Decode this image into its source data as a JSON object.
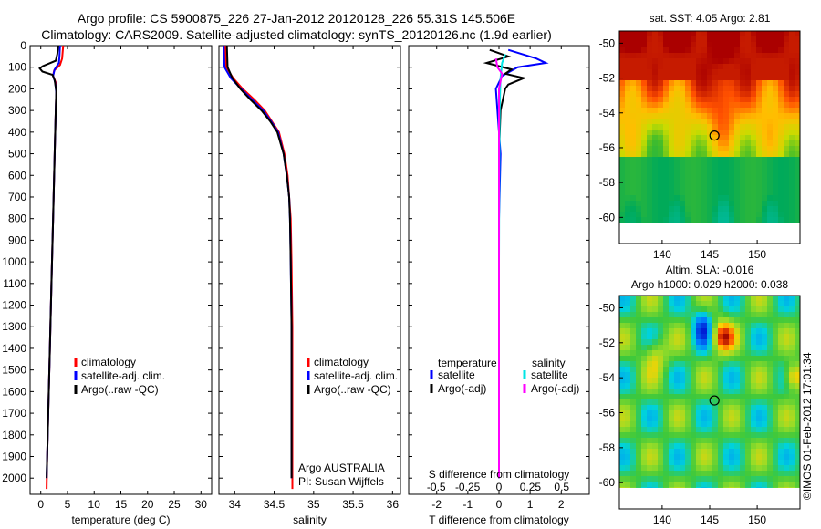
{
  "header": {
    "title_line1": "Argo profile: CS 5900875_226 27-Jan-2012 20120128_226 55.31S 145.506E",
    "title_line2": "Climatology: CARS2009. Satellite-adjusted climatology: synTS_20120126.nc (1.9d earlier)"
  },
  "credit": "©IMOS 01-Feb-2012 17:01:34",
  "colors": {
    "climatology": "#ff0000",
    "satellite": "#0000ff",
    "argo": "#000000",
    "satellite_salinity": "#00e5e5",
    "argo_salinity": "#ff00ff"
  },
  "chart_data": [
    {
      "type": "line",
      "xlabel": "temperature (deg C)",
      "xlim": [
        -2,
        32
      ],
      "xticks": [
        0,
        5,
        10,
        15,
        20,
        25,
        30
      ],
      "ylim": [
        2075,
        0
      ],
      "yticks": [
        0,
        100,
        200,
        300,
        400,
        500,
        600,
        700,
        800,
        900,
        1000,
        1100,
        1200,
        1300,
        1400,
        1500,
        1600,
        1700,
        1800,
        1900,
        2000
      ],
      "legend": [
        "climatology",
        "satellite-adj. clim.",
        "Argo(..raw -QC)"
      ],
      "series": [
        {
          "name": "climatology",
          "color": "#ff0000",
          "points": [
            [
              4.2,
              0
            ],
            [
              4.0,
              60
            ],
            [
              3.6,
              90
            ],
            [
              2.5,
              115
            ],
            [
              2.3,
              140
            ],
            [
              2.8,
              170
            ],
            [
              2.9,
              220
            ],
            [
              2.8,
              300
            ],
            [
              2.6,
              500
            ],
            [
              2.3,
              800
            ],
            [
              2.0,
              1100
            ],
            [
              1.7,
              1400
            ],
            [
              1.4,
              1700
            ],
            [
              1.2,
              1900
            ],
            [
              1.1,
              2050
            ]
          ]
        },
        {
          "name": "satellite-adj. clim.",
          "color": "#0000ff",
          "points": [
            [
              3.6,
              0
            ],
            [
              3.5,
              50
            ],
            [
              3.4,
              80
            ],
            [
              2.6,
              110
            ],
            [
              2.3,
              140
            ],
            [
              2.7,
              170
            ],
            [
              2.9,
              220
            ],
            [
              2.8,
              300
            ],
            [
              2.6,
              500
            ],
            [
              2.3,
              800
            ],
            [
              2.0,
              1100
            ],
            [
              1.7,
              1400
            ],
            [
              1.4,
              1700
            ],
            [
              1.2,
              1900
            ],
            [
              1.1,
              2000
            ]
          ]
        },
        {
          "name": "Argo(..raw -QC)",
          "color": "#000000",
          "points": [
            [
              3.3,
              0
            ],
            [
              3.1,
              40
            ],
            [
              2.8,
              70
            ],
            [
              0.4,
              95
            ],
            [
              -0.2,
              105
            ],
            [
              0.3,
              120
            ],
            [
              2.2,
              135
            ],
            [
              2.6,
              160
            ],
            [
              2.9,
              210
            ],
            [
              2.8,
              300
            ],
            [
              2.6,
              500
            ],
            [
              2.3,
              800
            ],
            [
              2.0,
              1100
            ],
            [
              1.7,
              1400
            ],
            [
              1.4,
              1700
            ],
            [
              1.2,
              1900
            ],
            [
              1.1,
              2000
            ]
          ]
        }
      ]
    },
    {
      "type": "line",
      "xlabel": "salinity",
      "xlim": [
        33.8,
        36.1
      ],
      "xticks": [
        34,
        34.5,
        35,
        35.5,
        36
      ],
      "ylim": [
        2075,
        0
      ],
      "legend": [
        "climatology",
        "satellite-adj. clim.",
        "Argo(..raw -QC)"
      ],
      "annotation": [
        "Argo AUSTRALIA",
        "PI: Susan Wijffels"
      ],
      "series": [
        {
          "name": "climatology",
          "color": "#ff0000",
          "points": [
            [
              33.88,
              0
            ],
            [
              33.89,
              100
            ],
            [
              33.98,
              150
            ],
            [
              34.1,
              200
            ],
            [
              34.25,
              250
            ],
            [
              34.38,
              300
            ],
            [
              34.47,
              350
            ],
            [
              34.56,
              400
            ],
            [
              34.63,
              500
            ],
            [
              34.67,
              600
            ],
            [
              34.69,
              700
            ],
            [
              34.71,
              800
            ],
            [
              34.72,
              1000
            ],
            [
              34.73,
              1300
            ],
            [
              34.73,
              2050
            ]
          ]
        },
        {
          "name": "satellite-adj. clim.",
          "color": "#0000ff",
          "points": [
            [
              33.86,
              0
            ],
            [
              33.87,
              100
            ],
            [
              33.95,
              150
            ],
            [
              34.08,
              200
            ],
            [
              34.22,
              250
            ],
            [
              34.36,
              300
            ],
            [
              34.46,
              350
            ],
            [
              34.55,
              400
            ],
            [
              34.62,
              500
            ],
            [
              34.66,
              600
            ],
            [
              34.69,
              700
            ],
            [
              34.7,
              800
            ],
            [
              34.71,
              1000
            ],
            [
              34.72,
              1300
            ],
            [
              34.72,
              2000
            ]
          ]
        },
        {
          "name": "Argo(..raw -QC)",
          "color": "#000000",
          "points": [
            [
              33.9,
              0
            ],
            [
              33.91,
              100
            ],
            [
              33.97,
              150
            ],
            [
              34.07,
              200
            ],
            [
              34.2,
              250
            ],
            [
              34.34,
              300
            ],
            [
              34.45,
              350
            ],
            [
              34.54,
              400
            ],
            [
              34.62,
              500
            ],
            [
              34.66,
              600
            ],
            [
              34.69,
              700
            ],
            [
              34.7,
              800
            ],
            [
              34.71,
              1000
            ],
            [
              34.72,
              1300
            ],
            [
              34.72,
              2000
            ]
          ]
        }
      ]
    },
    {
      "type": "line",
      "xlabel": "T difference from climatology",
      "top_label": "S difference from climatology",
      "xlim": [
        -2.9,
        2.9
      ],
      "xticks": [
        -2,
        -1,
        0,
        1,
        2
      ],
      "sticks": [
        -0.5,
        -0.25,
        0,
        0.25,
        0.5
      ],
      "sticks_labels": [
        "-0.5",
        "-0.25",
        "0",
        "0.25",
        "0.5"
      ],
      "ylim": [
        2075,
        0
      ],
      "legend": {
        "temperature": [
          "satellite",
          "Argo(-adj)"
        ],
        "salinity": [
          "satellite",
          "Argo(-adj)"
        ]
      },
      "series": [
        {
          "name": "satellite",
          "group": "temperature",
          "color": "#0000ff",
          "points": [
            [
              0.3,
              20
            ],
            [
              1.2,
              60
            ],
            [
              1.5,
              80
            ],
            [
              0.6,
              100
            ],
            [
              0.1,
              140
            ],
            [
              -0.1,
              200
            ],
            [
              -0.05,
              300
            ],
            [
              0.05,
              500
            ],
            [
              0,
              800
            ],
            [
              0,
              1200
            ],
            [
              0,
              2000
            ]
          ]
        },
        {
          "name": "Argo(-adj)",
          "group": "temperature",
          "color": "#000000",
          "points": [
            [
              -0.3,
              20
            ],
            [
              0.3,
              50
            ],
            [
              -0.4,
              80
            ],
            [
              0.4,
              110
            ],
            [
              0.2,
              130
            ],
            [
              0.8,
              150
            ],
            [
              0.3,
              180
            ],
            [
              0.2,
              200
            ],
            [
              0.05,
              300
            ],
            [
              0.0,
              500
            ],
            [
              0,
              1000
            ],
            [
              0,
              2000
            ]
          ]
        },
        {
          "name": "satellite",
          "group": "salinity",
          "color": "#00e5e5",
          "points": [
            [
              0.2,
              40
            ],
            [
              0.1,
              80
            ],
            [
              0.05,
              150
            ],
            [
              0.02,
              300
            ],
            [
              0.01,
              600
            ],
            [
              0,
              1000
            ],
            [
              0,
              2000
            ]
          ]
        },
        {
          "name": "Argo(-adj)",
          "group": "salinity",
          "color": "#ff00ff",
          "points": [
            [
              -0.1,
              60
            ],
            [
              -0.05,
              100
            ],
            [
              0.1,
              130
            ],
            [
              0,
              200
            ],
            [
              0,
              500
            ],
            [
              0,
              2000
            ]
          ]
        }
      ]
    },
    {
      "type": "heatmap",
      "title": "sat. SST: 4.05 Argo: 2.81",
      "xlim": [
        135.5,
        154.5
      ],
      "ylim": [
        -61.5,
        -49.3
      ],
      "xticks": [
        140,
        145,
        150
      ],
      "yticks": [
        -50,
        -52,
        -54,
        -56,
        -58,
        -60
      ],
      "marker": [
        145.5,
        -55.3
      ]
    },
    {
      "type": "heatmap",
      "title_line1": "Altim. SLA: -0.016",
      "title_line2": "Argo h1000: 0.029 h2000: 0.038",
      "xlim": [
        135.5,
        154.5
      ],
      "ylim": [
        -61.5,
        -49.3
      ],
      "xticks": [
        140,
        145,
        150
      ],
      "yticks": [
        -50,
        -52,
        -54,
        -56,
        -58,
        -60
      ],
      "marker": [
        145.5,
        -55.3
      ]
    }
  ]
}
